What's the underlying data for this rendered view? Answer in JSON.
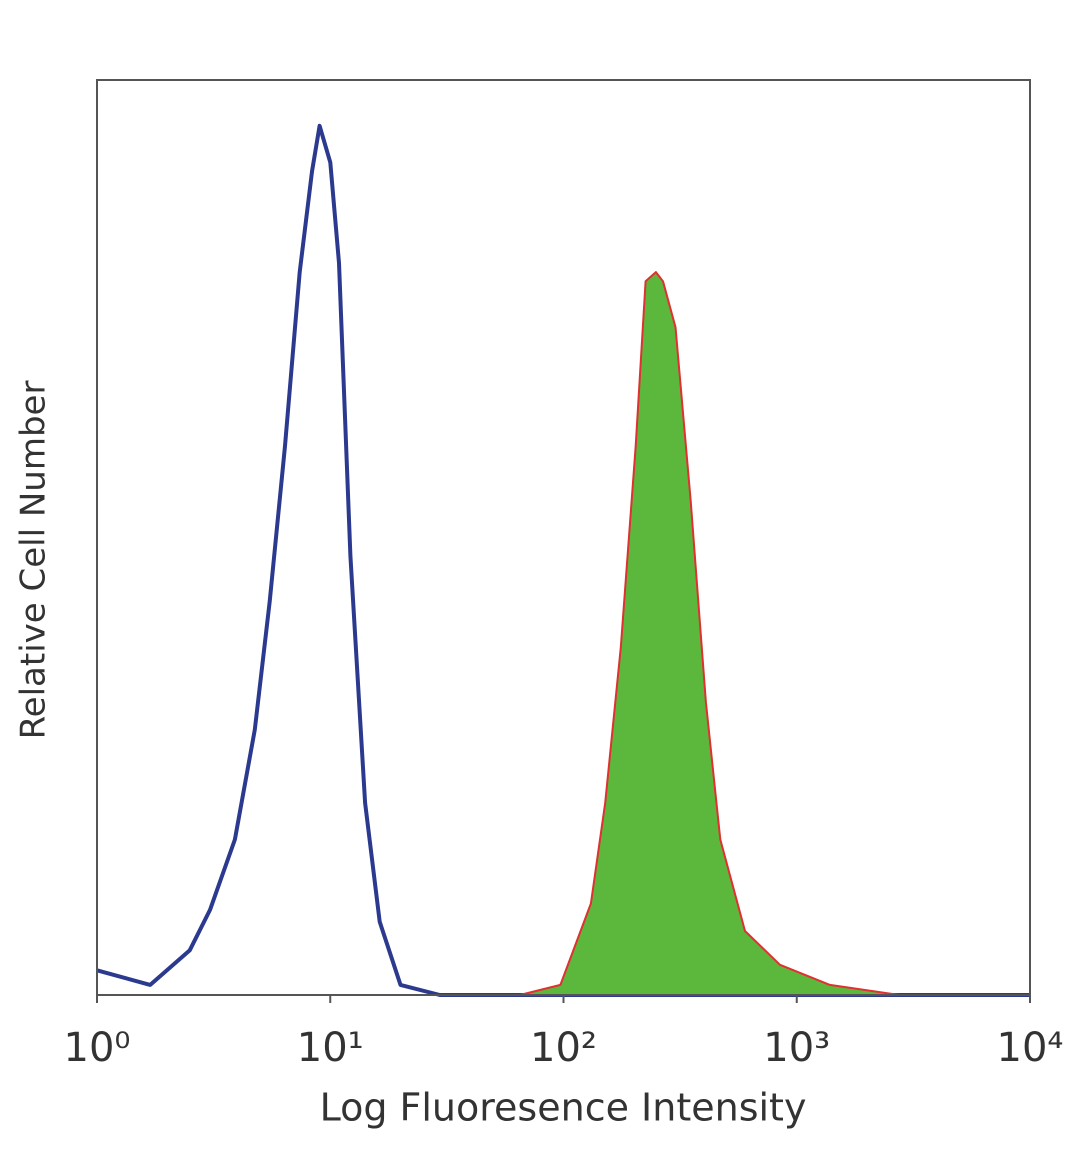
{
  "chart_data": {
    "type": "histogram-overlay",
    "xlabel": "Log Fluoresence Intensity",
    "ylabel": "Relative Cell Number",
    "xscale": "log",
    "xlim": [
      1,
      10000
    ],
    "ylim": [
      0,
      100
    ],
    "xticks": [
      {
        "value": 1,
        "label": "10⁰"
      },
      {
        "value": 10,
        "label": "10¹"
      },
      {
        "value": 100,
        "label": "10²"
      },
      {
        "value": 1000,
        "label": "10³"
      },
      {
        "value": 10000,
        "label": "10⁴"
      }
    ],
    "series": [
      {
        "color": "#2b3a8f",
        "x": [
          1,
          1.69,
          2.5,
          3.05,
          3.9,
          4.75,
          5.5,
          6.4,
          7.4,
          8.35,
          9.0,
          10,
          10.9,
          12.2,
          14.1,
          16.3,
          20,
          29.5,
          10000
        ],
        "values": [
          2.7,
          1.1,
          4.9,
          9.3,
          17,
          29,
          43,
          60,
          79,
          90,
          95,
          91,
          80,
          48,
          21,
          8,
          1.1,
          0,
          0
        ]
      },
      {
        "color": "#e03030",
        "fill": "#5cb83c",
        "x": [
          1,
          65,
          97,
          131,
          151,
          176,
          204,
          225,
          249,
          267,
          302,
          351,
          408,
          470,
          600,
          848,
          1387,
          2760,
          10000
        ],
        "values": [
          0,
          0,
          1.1,
          10,
          21,
          38,
          60,
          78,
          79,
          78,
          73,
          54,
          32,
          17,
          7,
          3.3,
          1.1,
          0,
          0
        ]
      }
    ]
  }
}
